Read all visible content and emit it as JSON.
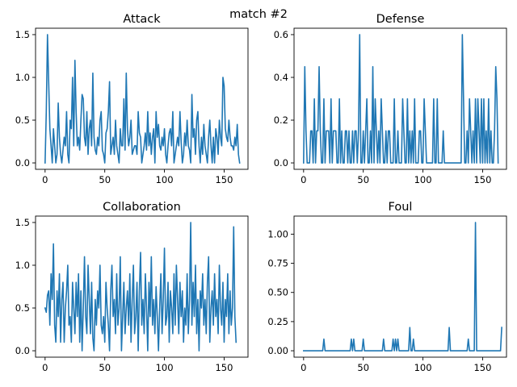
{
  "figure": {
    "suptitle": "match #2"
  },
  "style": {
    "line_color": "#1f77b4",
    "background": "#ffffff"
  },
  "chart_data": [
    {
      "type": "line",
      "title": "Attack",
      "xlabel": "",
      "ylabel": "",
      "xlim": [
        -8,
        170
      ],
      "ylim": [
        -0.075,
        1.575
      ],
      "xticks": [
        0,
        50,
        100,
        150
      ],
      "xtick_labels": [
        "0",
        "50",
        "100",
        "150"
      ],
      "yticks": [
        0.0,
        0.5,
        1.0,
        1.5
      ],
      "ytick_labels": [
        "0.0",
        "0.5",
        "1.0",
        "1.5"
      ],
      "grid": false,
      "series": [
        {
          "x_start": 0,
          "x_step": 1,
          "values": [
            0.0,
            0.6,
            1.5,
            0.95,
            0.4,
            0.2,
            0.0,
            0.4,
            0.2,
            0.0,
            0.1,
            0.7,
            0.3,
            0.1,
            0.0,
            0.15,
            0.3,
            0.2,
            0.6,
            0.1,
            0.0,
            0.5,
            0.4,
            1.0,
            0.2,
            1.2,
            0.6,
            0.2,
            0.3,
            0.15,
            0.5,
            0.8,
            0.75,
            0.3,
            0.2,
            0.6,
            0.1,
            0.4,
            0.5,
            0.2,
            1.05,
            0.3,
            0.15,
            0.1,
            0.3,
            0.2,
            0.5,
            0.6,
            0.15,
            0.1,
            0.0,
            0.35,
            0.4,
            0.6,
            0.95,
            0.1,
            0.2,
            0.3,
            0.1,
            0.5,
            0.2,
            0.1,
            0.0,
            0.4,
            0.2,
            0.2,
            0.75,
            0.15,
            1.05,
            0.4,
            0.2,
            0.3,
            0.5,
            0.1,
            0.15,
            0.2,
            0.2,
            0.1,
            0.6,
            0.35,
            0.3,
            0.0,
            0.1,
            0.2,
            0.35,
            0.15,
            0.6,
            0.2,
            0.35,
            0.1,
            0.3,
            0.4,
            0.0,
            0.6,
            0.3,
            0.45,
            0.2,
            0.15,
            0.3,
            0.2,
            0.4,
            0.1,
            0.0,
            0.2,
            0.35,
            0.4,
            0.2,
            0.6,
            0.0,
            0.1,
            0.2,
            0.3,
            0.2,
            0.6,
            0.25,
            0.0,
            0.1,
            0.35,
            0.2,
            0.5,
            0.2,
            0.15,
            0.0,
            0.8,
            0.3,
            0.4,
            0.1,
            0.5,
            0.6,
            0.2,
            0.0,
            0.3,
            0.1,
            0.45,
            0.2,
            0.1,
            0.0,
            0.3,
            0.5,
            0.2,
            0.0,
            0.3,
            0.0,
            0.4,
            0.3,
            0.1,
            0.5,
            0.3,
            0.2,
            1.0,
            0.9,
            0.4,
            0.3,
            0.25,
            0.5,
            0.3,
            0.2,
            0.2,
            0.15,
            0.3,
            0.2,
            0.45,
            0.1,
            0.0
          ]
        }
      ]
    },
    {
      "type": "line",
      "title": "Defense",
      "xlabel": "",
      "ylabel": "",
      "xlim": [
        -8,
        170
      ],
      "ylim": [
        -0.03,
        0.63
      ],
      "xticks": [
        0,
        50,
        100,
        150
      ],
      "xtick_labels": [
        "0",
        "50",
        "100",
        "150"
      ],
      "yticks": [
        0.0,
        0.2,
        0.4,
        0.6
      ],
      "ytick_labels": [
        "0.0",
        "0.2",
        "0.4",
        "0.6"
      ],
      "grid": false,
      "series": [
        {
          "x_start": 0,
          "x_step": 1,
          "values": [
            0.0,
            0.45,
            0.15,
            0.0,
            0.0,
            0.0,
            0.15,
            0.15,
            0.0,
            0.3,
            0.0,
            0.15,
            0.15,
            0.45,
            0.15,
            0.0,
            0.0,
            0.3,
            0.0,
            0.15,
            0.15,
            0.15,
            0.0,
            0.3,
            0.0,
            0.15,
            0.15,
            0.15,
            0.0,
            0.0,
            0.3,
            0.0,
            0.15,
            0.0,
            0.0,
            0.15,
            0.15,
            0.0,
            0.15,
            0.0,
            0.0,
            0.15,
            0.0,
            0.15,
            0.15,
            0.0,
            0.15,
            0.6,
            0.0,
            0.0,
            0.15,
            0.0,
            0.15,
            0.3,
            0.0,
            0.0,
            0.15,
            0.0,
            0.45,
            0.0,
            0.3,
            0.15,
            0.0,
            0.15,
            0.0,
            0.3,
            0.15,
            0.0,
            0.0,
            0.15,
            0.0,
            0.15,
            0.15,
            0.0,
            0.0,
            0.0,
            0.3,
            0.0,
            0.0,
            0.15,
            0.0,
            0.0,
            0.0,
            0.3,
            0.15,
            0.0,
            0.0,
            0.3,
            0.0,
            0.15,
            0.0,
            0.15,
            0.0,
            0.3,
            0.0,
            0.0,
            0.0,
            0.15,
            0.15,
            0.0,
            0.0,
            0.3,
            0.15,
            0.0,
            0.0,
            0.0,
            0.0,
            0.0,
            0.0,
            0.3,
            0.0,
            0.0,
            0.3,
            0.0,
            0.0,
            0.0,
            0.0,
            0.15,
            0.0,
            0.0,
            0.0,
            0.0,
            0.0,
            0.0,
            0.0,
            0.0,
            0.0,
            0.0,
            0.0,
            0.0,
            0.0,
            0.0,
            0.0,
            0.6,
            0.3,
            0.0,
            0.0,
            0.15,
            0.0,
            0.3,
            0.15,
            0.0,
            0.15,
            0.0,
            0.3,
            0.0,
            0.3,
            0.15,
            0.0,
            0.3,
            0.0,
            0.3,
            0.0,
            0.15,
            0.0,
            0.3,
            0.0,
            0.15,
            0.0,
            0.0,
            0.15,
            0.45,
            0.3,
            0.0
          ]
        }
      ]
    },
    {
      "type": "line",
      "title": "Collaboration",
      "xlabel": "",
      "ylabel": "",
      "xlim": [
        -8,
        170
      ],
      "ylim": [
        -0.075,
        1.575
      ],
      "xticks": [
        0,
        50,
        100,
        150
      ],
      "xtick_labels": [
        "0",
        "50",
        "100",
        "150"
      ],
      "yticks": [
        0.0,
        0.5,
        1.0,
        1.5
      ],
      "ytick_labels": [
        "0.0",
        "0.5",
        "1.0",
        "1.5"
      ],
      "grid": false,
      "series": [
        {
          "x_start": 0,
          "x_step": 1,
          "values": [
            0.5,
            0.45,
            0.65,
            0.7,
            0.3,
            0.9,
            0.6,
            1.25,
            0.3,
            0.1,
            0.7,
            0.4,
            0.9,
            0.1,
            0.6,
            0.8,
            0.1,
            0.5,
            0.7,
            1.0,
            0.3,
            0.4,
            0.1,
            0.8,
            0.5,
            0.2,
            0.8,
            0.4,
            0.9,
            0.1,
            0.7,
            0.0,
            0.5,
            1.1,
            0.4,
            0.2,
            1.0,
            0.6,
            0.2,
            0.8,
            0.15,
            0.0,
            0.6,
            0.3,
            0.7,
            0.5,
            1.0,
            0.3,
            0.2,
            0.4,
            0.1,
            0.8,
            0.5,
            0.3,
            0.0,
            0.7,
            1.0,
            0.4,
            0.6,
            0.2,
            0.9,
            0.3,
            0.5,
            1.1,
            0.0,
            0.4,
            0.8,
            0.2,
            0.5,
            0.7,
            0.3,
            0.9,
            0.1,
            0.6,
            1.0,
            0.2,
            0.4,
            0.8,
            0.0,
            0.7,
            1.15,
            0.3,
            0.6,
            0.2,
            0.9,
            0.5,
            0.0,
            0.8,
            0.4,
            1.1,
            0.3,
            0.6,
            0.2,
            0.75,
            0.4,
            0.0,
            0.5,
            0.9,
            0.2,
            0.6,
            1.2,
            0.3,
            0.4,
            0.8,
            0.1,
            0.7,
            0.5,
            0.2,
            0.9,
            0.3,
            1.0,
            0.6,
            0.2,
            0.8,
            0.4,
            0.7,
            0.1,
            0.5,
            0.3,
            0.9,
            0.2,
            0.6,
            1.5,
            0.3,
            0.8,
            0.4,
            1.0,
            0.2,
            0.6,
            0.0,
            0.7,
            0.5,
            0.9,
            0.3,
            0.6,
            0.2,
            0.8,
            1.1,
            0.1,
            0.5,
            0.7,
            0.3,
            0.9,
            0.4,
            0.6,
            0.2,
            1.0,
            0.5,
            0.3,
            0.8,
            0.1,
            0.6,
            0.4,
            0.9,
            0.2,
            0.7,
            0.3,
            0.5,
            1.45,
            0.4,
            0.1
          ]
        }
      ]
    },
    {
      "type": "line",
      "title": "Foul",
      "xlabel": "",
      "ylabel": "",
      "xlim": [
        -8,
        170
      ],
      "ylim": [
        -0.055,
        1.155
      ],
      "xticks": [
        0,
        50,
        100,
        150
      ],
      "xtick_labels": [
        "0",
        "50",
        "100",
        "150"
      ],
      "yticks": [
        0.0,
        0.25,
        0.5,
        0.75,
        1.0
      ],
      "ytick_labels": [
        "0.00",
        "0.25",
        "0.50",
        "0.75",
        "1.00"
      ],
      "grid": false,
      "series": [
        {
          "x_start": 0,
          "x_step": 1,
          "values": [
            0.0,
            0.0,
            0.0,
            0.0,
            0.0,
            0.0,
            0.0,
            0.0,
            0.0,
            0.0,
            0.0,
            0.0,
            0.0,
            0.0,
            0.0,
            0.0,
            0.0,
            0.1,
            0.0,
            0.0,
            0.0,
            0.0,
            0.0,
            0.0,
            0.0,
            0.0,
            0.0,
            0.0,
            0.0,
            0.0,
            0.0,
            0.0,
            0.0,
            0.0,
            0.0,
            0.0,
            0.0,
            0.0,
            0.0,
            0.0,
            0.1,
            0.0,
            0.1,
            0.0,
            0.0,
            0.0,
            0.0,
            0.0,
            0.0,
            0.0,
            0.1,
            0.0,
            0.0,
            0.0,
            0.0,
            0.0,
            0.0,
            0.0,
            0.0,
            0.0,
            0.0,
            0.0,
            0.0,
            0.0,
            0.0,
            0.0,
            0.0,
            0.1,
            0.0,
            0.0,
            0.0,
            0.0,
            0.0,
            0.0,
            0.0,
            0.1,
            0.0,
            0.1,
            0.0,
            0.1,
            0.0,
            0.0,
            0.0,
            0.0,
            0.0,
            0.0,
            0.0,
            0.0,
            0.0,
            0.2,
            0.0,
            0.0,
            0.1,
            0.0,
            0.0,
            0.0,
            0.0,
            0.0,
            0.0,
            0.0,
            0.0,
            0.0,
            0.0,
            0.0,
            0.0,
            0.0,
            0.0,
            0.0,
            0.0,
            0.0,
            0.0,
            0.0,
            0.0,
            0.0,
            0.0,
            0.0,
            0.0,
            0.0,
            0.0,
            0.0,
            0.0,
            0.0,
            0.2,
            0.0,
            0.0,
            0.0,
            0.0,
            0.0,
            0.0,
            0.0,
            0.0,
            0.0,
            0.0,
            0.0,
            0.0,
            0.0,
            0.0,
            0.0,
            0.1,
            0.0,
            0.0,
            0.0,
            0.0,
            0.0,
            1.1,
            0.0,
            0.0,
            0.0,
            0.0,
            0.0,
            0.0,
            0.0,
            0.0,
            0.0,
            0.0,
            0.0,
            0.0,
            0.0,
            0.0,
            0.0,
            0.0,
            0.0,
            0.0,
            0.0,
            0.0,
            0.0,
            0.2
          ]
        }
      ]
    }
  ]
}
